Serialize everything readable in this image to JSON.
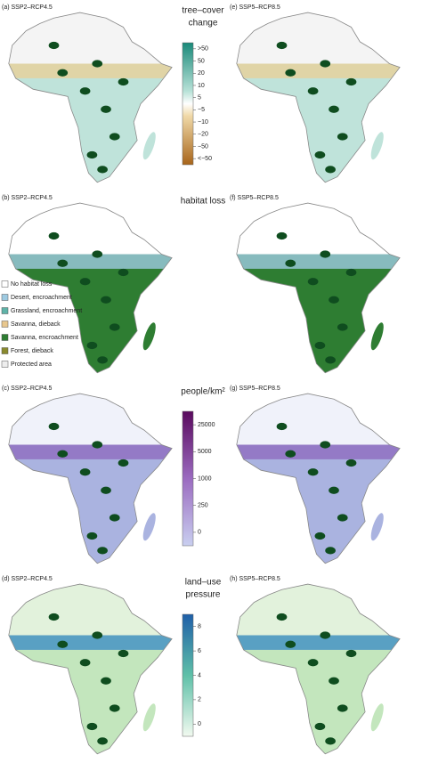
{
  "panels": [
    {
      "left_label": "(a) SSP2–RCP4.5",
      "right_label": "(e) SSP5–RCP8.5",
      "legend_title": [
        "tree–cover",
        "change"
      ],
      "ticks": [
        ">50",
        50,
        20,
        10,
        5,
        "−5",
        "−10",
        "−20",
        "−50",
        "<−50"
      ]
    },
    {
      "left_label": "(b) SSP2–RCP4.5",
      "right_label": "(f) SSP5–RCP8.5",
      "legend_title": [
        "habitat loss"
      ],
      "legend_items": [
        {
          "label": "No habitat loss",
          "color": "#ffffff"
        },
        {
          "label": "Desert, encroachment",
          "color": "#9ecae1"
        },
        {
          "label": "Grassland, encroachment",
          "color": "#5fb3a8"
        },
        {
          "label": "Savanna, dieback",
          "color": "#e8c78e"
        },
        {
          "label": "Savanna, encroachment",
          "color": "#2e7d32"
        },
        {
          "label": "Forest, dieback",
          "color": "#8a8a2e"
        },
        {
          "label": "Protected area",
          "color": "#eeeeee"
        }
      ]
    },
    {
      "left_label": "(c) SSP2–RCP4.5",
      "right_label": "(g) SSP5–RCP8.5",
      "legend_title": [
        "people/km²"
      ],
      "ticks": [
        25000,
        5000,
        1000,
        250,
        0
      ]
    },
    {
      "left_label": "(d) SSP2–RCP4.5",
      "right_label": "(h) SSP5–RCP8.5",
      "legend_title": [
        "land–use",
        "pressure"
      ],
      "ticks": [
        8,
        6,
        4,
        2,
        0
      ]
    }
  ]
}
